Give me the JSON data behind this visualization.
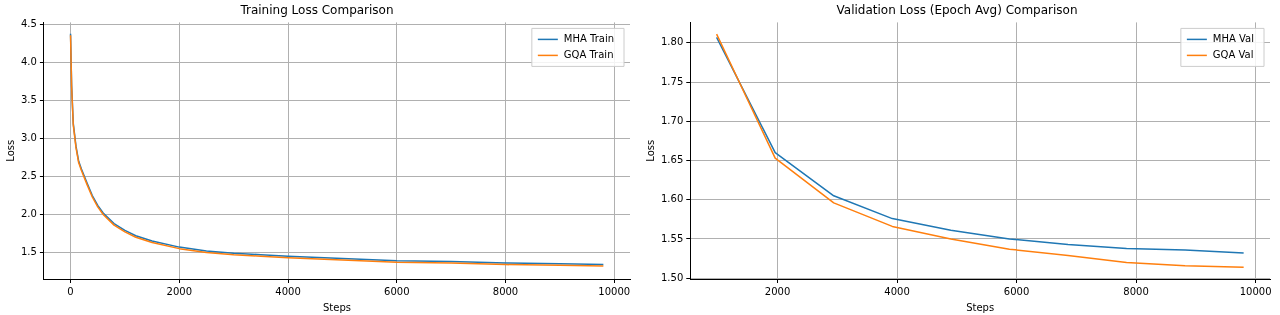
{
  "chart_data": [
    {
      "type": "line",
      "title": "Training Loss Comparison",
      "xlabel": "Steps",
      "ylabel": "Loss",
      "xlim": [
        -490,
        10290
      ],
      "ylim": [
        1.15,
        4.53
      ],
      "xticks": [
        0,
        2000,
        4000,
        6000,
        8000,
        10000
      ],
      "yticks": [
        {
          "value": 1.5,
          "label": "1.5"
        },
        {
          "value": 2,
          "label": "2.0"
        },
        {
          "value": 2.5,
          "label": "2.5"
        },
        {
          "value": 3,
          "label": "3.0"
        },
        {
          "value": 3.5,
          "label": "3.5"
        },
        {
          "value": 4,
          "label": "4.0"
        },
        {
          "value": 4.5,
          "label": "4.5"
        }
      ],
      "grid": true,
      "legend": "top right",
      "marker": "none",
      "line_style": "solid",
      "x": [
        0,
        20,
        50,
        100,
        150,
        200,
        300,
        400,
        500,
        600,
        800,
        1000,
        1200,
        1500,
        2000,
        2500,
        3000,
        3500,
        4000,
        5000,
        6000,
        7000,
        8000,
        9000,
        9800
      ],
      "series": [
        {
          "name": "MHA Train",
          "color": "#1f77b4",
          "values": [
            4.38,
            3.7,
            3.2,
            2.9,
            2.7,
            2.6,
            2.42,
            2.25,
            2.12,
            2.02,
            1.88,
            1.79,
            1.72,
            1.65,
            1.57,
            1.52,
            1.49,
            1.47,
            1.45,
            1.42,
            1.39,
            1.38,
            1.36,
            1.35,
            1.34
          ]
        },
        {
          "name": "GQA Train",
          "color": "#ff7f0e",
          "values": [
            4.36,
            3.68,
            3.18,
            2.88,
            2.68,
            2.58,
            2.4,
            2.23,
            2.1,
            2.0,
            1.86,
            1.77,
            1.7,
            1.63,
            1.55,
            1.5,
            1.47,
            1.45,
            1.43,
            1.4,
            1.37,
            1.36,
            1.34,
            1.33,
            1.32
          ]
        }
      ]
    },
    {
      "type": "line",
      "title": "Validation Loss (Epoch Avg) Comparison",
      "xlabel": "Steps",
      "ylabel": "Loss",
      "xlim": [
        539,
        10241
      ],
      "ylim": [
        1.499,
        1.826
      ],
      "xticks": [
        2000,
        4000,
        6000,
        8000,
        10000
      ],
      "yticks": [
        {
          "value": 1.5,
          "label": "1.50"
        },
        {
          "value": 1.55,
          "label": "1.55"
        },
        {
          "value": 1.6,
          "label": "1.60"
        },
        {
          "value": 1.65,
          "label": "1.65"
        },
        {
          "value": 1.7,
          "label": "1.70"
        },
        {
          "value": 1.75,
          "label": "1.75"
        },
        {
          "value": 1.8,
          "label": "1.80"
        }
      ],
      "grid": true,
      "legend": "top right",
      "marker": "none",
      "line_style": "solid",
      "x": [
        980,
        1960,
        2940,
        3920,
        4900,
        5880,
        6860,
        7840,
        8820,
        9800
      ],
      "series": [
        {
          "name": "MHA Val",
          "color": "#1f77b4",
          "values": [
            1.807,
            1.66,
            1.605,
            1.576,
            1.561,
            1.55,
            1.543,
            1.538,
            1.536,
            1.532
          ]
        },
        {
          "name": "GQA Val",
          "color": "#ff7f0e",
          "values": [
            1.811,
            1.653,
            1.596,
            1.566,
            1.55,
            1.537,
            1.529,
            1.52,
            1.516,
            1.514
          ]
        }
      ]
    }
  ]
}
